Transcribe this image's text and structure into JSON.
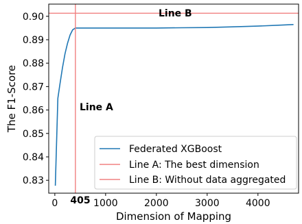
{
  "chart_data": {
    "type": "line",
    "xlabel": "Dimension of Mapping",
    "ylabel": "The F1-Score",
    "xlim": [
      -120,
      4800
    ],
    "ylim": [
      0.8245,
      0.9052
    ],
    "x_ticks": [
      0,
      1000,
      2000,
      3000,
      4000
    ],
    "y_ticks": [
      0.83,
      0.84,
      0.85,
      0.86,
      0.87,
      0.88,
      0.89,
      0.9
    ],
    "y_tick_labels": [
      "0.83",
      "0.84",
      "0.85",
      "0.86",
      "0.87",
      "0.88",
      "0.89",
      "0.90"
    ],
    "series": [
      {
        "name": "Federated XGBoost",
        "color": "#1f77b4",
        "x": [
          10,
          40,
          60,
          100,
          150,
          200,
          250,
          300,
          350,
          405,
          600,
          1000,
          1500,
          2000,
          2500,
          3000,
          3500,
          4000,
          4400,
          4700
        ],
        "y": [
          0.8277,
          0.85,
          0.865,
          0.871,
          0.878,
          0.884,
          0.8885,
          0.892,
          0.8942,
          0.895,
          0.895,
          0.895,
          0.895,
          0.895,
          0.8951,
          0.8952,
          0.8955,
          0.8958,
          0.8962,
          0.8965
        ]
      }
    ],
    "reference_lines": [
      {
        "name": "Line A: The best dimension",
        "orientation": "vertical",
        "value": 405,
        "color": "#f08080",
        "label": "Line A",
        "axis_label": "405"
      },
      {
        "name": "Line B: Without data aggregated",
        "orientation": "horizontal",
        "value": 0.9013,
        "color": "#f08080",
        "label": "Line B"
      }
    ],
    "legend_position": "lower-right",
    "grid": false
  }
}
